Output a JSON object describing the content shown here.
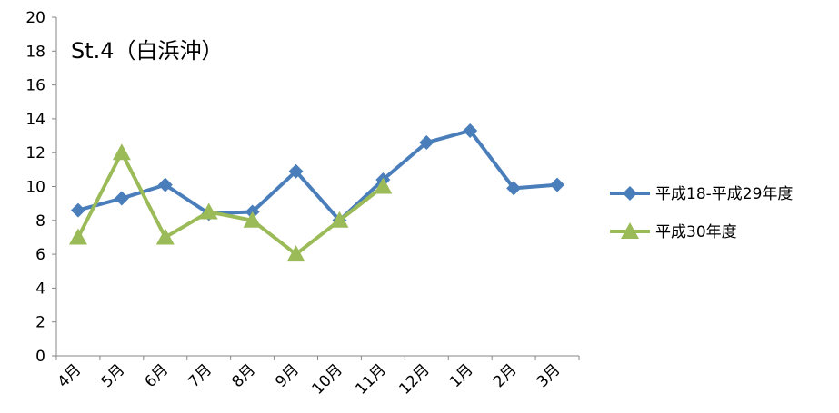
{
  "chart_data": {
    "type": "line",
    "title": "St.4（白浜沖）",
    "categories": [
      "4月",
      "5月",
      "6月",
      "7月",
      "8月",
      "9月",
      "10月",
      "11月",
      "12月",
      "1月",
      "2月",
      "3月"
    ],
    "ylim": [
      0,
      20
    ],
    "yticks": [
      0,
      2,
      4,
      6,
      8,
      10,
      12,
      14,
      16,
      18,
      20
    ],
    "grid": false,
    "legend_position": "right",
    "series": [
      {
        "name": "平成18-平成29年度",
        "color": "#4a7ebb",
        "marker": "diamond",
        "values": [
          8.6,
          9.3,
          10.1,
          8.4,
          8.5,
          10.9,
          8.0,
          10.4,
          12.6,
          13.3,
          9.9,
          10.1
        ]
      },
      {
        "name": "平成30年度",
        "color": "#9bbb59",
        "marker": "triangle",
        "values": [
          7.0,
          12.0,
          7.0,
          8.5,
          8.0,
          6.0,
          8.0,
          10.0,
          null,
          null,
          null,
          null
        ]
      }
    ]
  }
}
